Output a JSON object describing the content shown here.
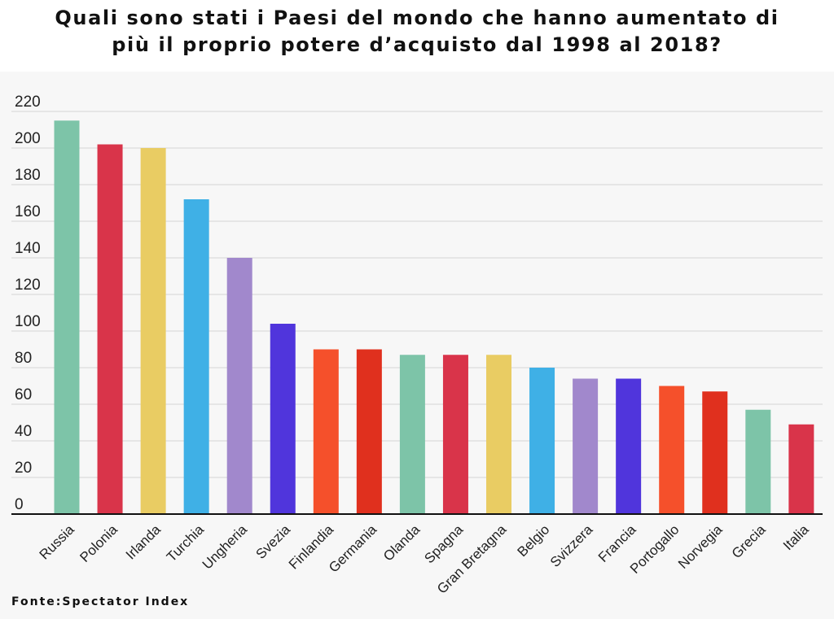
{
  "title_line1": "Quali sono stati i Paesi del mondo che hanno aumentato di",
  "title_line2": "più il proprio potere d’acquisto dal 1998 al 2018?",
  "source": "Fonte:Spectator Index",
  "chart_data": {
    "type": "bar",
    "title": "Quali sono stati i Paesi del mondo che hanno aumentato di più il proprio potere d’acquisto dal 1998 al 2018?",
    "xlabel": "",
    "ylabel": "",
    "ylim": [
      0,
      220
    ],
    "yticks": [
      0,
      20,
      40,
      60,
      80,
      100,
      120,
      140,
      160,
      180,
      200,
      220
    ],
    "grid": true,
    "legend": "none",
    "categories": [
      "Russia",
      "Polonia",
      "Irlanda",
      "Turchia",
      "Ungheria",
      "Svezia",
      "Finlandia",
      "Germania",
      "Olanda",
      "Spagna",
      "Gran Bretagna",
      "Belgio",
      "Svizzera",
      "Francia",
      "Portogallo",
      "Norvegia",
      "Grecia",
      "Italia"
    ],
    "values": [
      215,
      202,
      200,
      172,
      140,
      104,
      90,
      90,
      87,
      87,
      87,
      80,
      74,
      74,
      70,
      67,
      57,
      49
    ],
    "colors": [
      "#7dc4a8",
      "#d9344a",
      "#e9cc63",
      "#3fb0e6",
      "#a188cc",
      "#5035dc",
      "#f5502b",
      "#e0301e",
      "#7dc4a8",
      "#d9344a",
      "#e9cc63",
      "#3fb0e6",
      "#a188cc",
      "#5035dc",
      "#f5502b",
      "#e0301e",
      "#7dc4a8",
      "#d9344a"
    ]
  }
}
